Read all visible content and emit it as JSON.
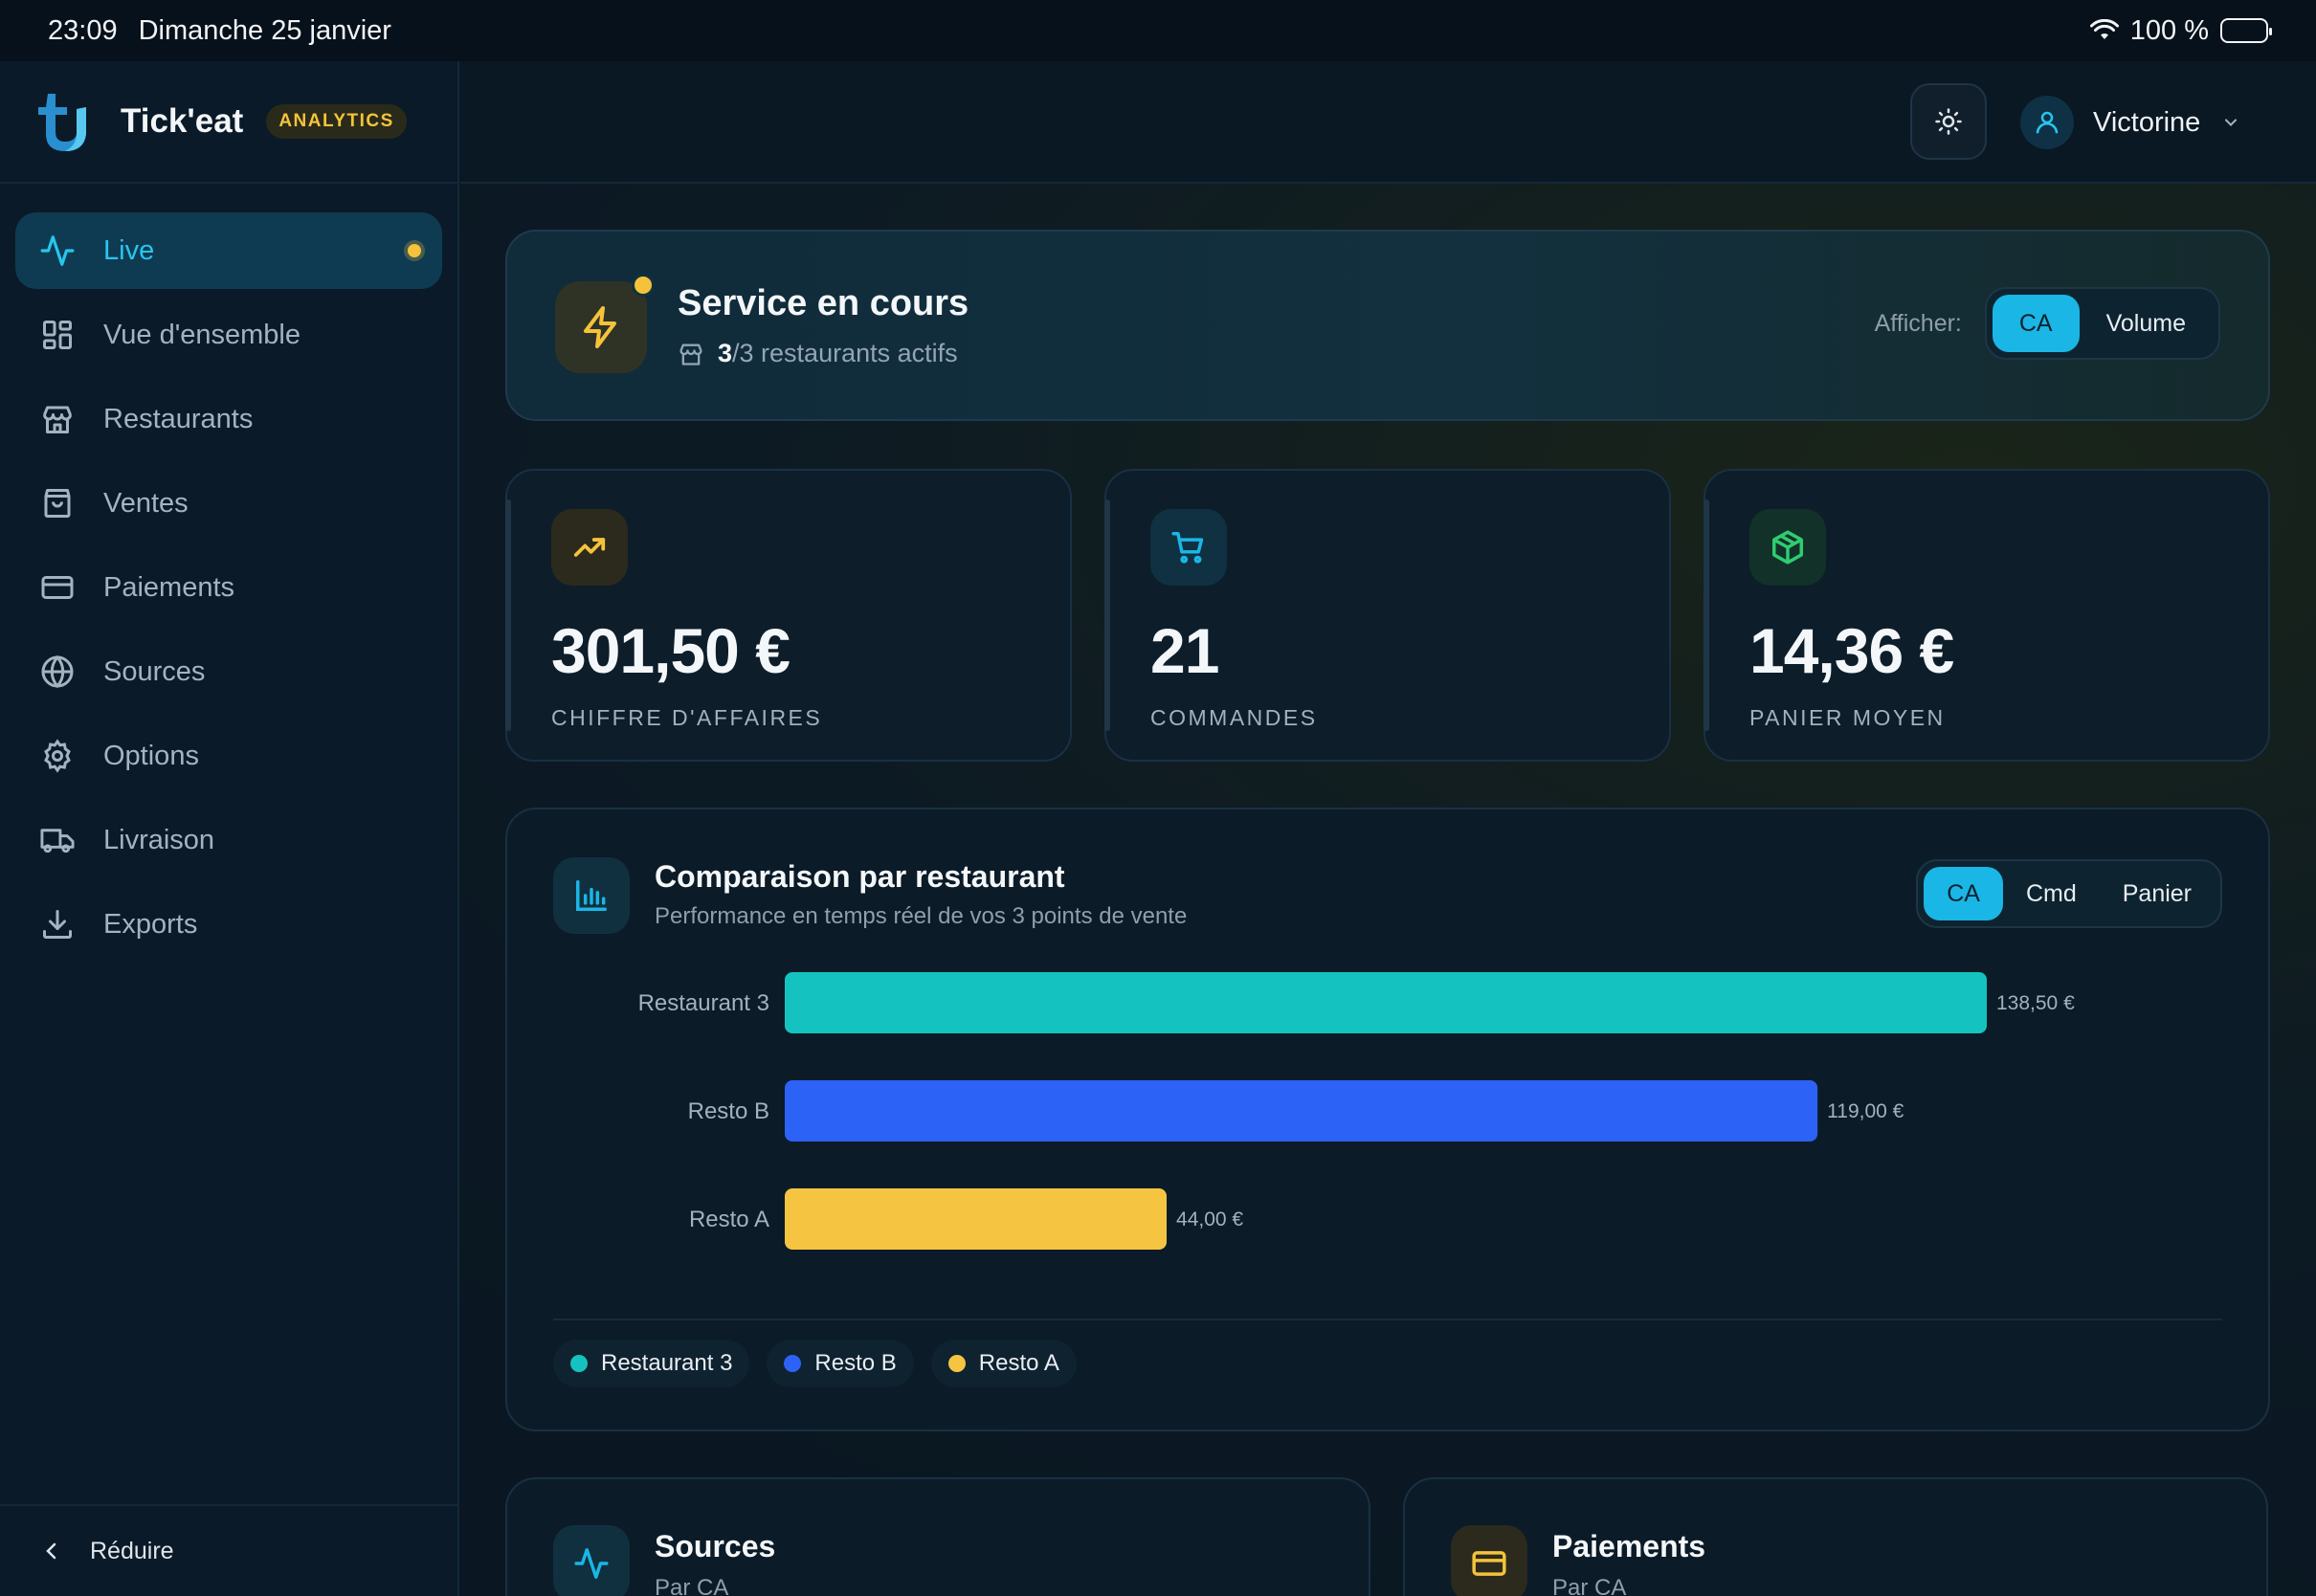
{
  "statusbar": {
    "time": "23:09",
    "date": "Dimanche 25 janvier",
    "battery": "100 %"
  },
  "brand": {
    "name": "Tick'eat",
    "badge": "ANALYTICS"
  },
  "sidebar": {
    "items": [
      {
        "label": "Live",
        "icon": "activity-icon",
        "active": true
      },
      {
        "label": "Vue d'ensemble",
        "icon": "grid-icon"
      },
      {
        "label": "Restaurants",
        "icon": "store-icon"
      },
      {
        "label": "Ventes",
        "icon": "bag-icon"
      },
      {
        "label": "Paiements",
        "icon": "credit-card-icon"
      },
      {
        "label": "Sources",
        "icon": "globe-icon"
      },
      {
        "label": "Options",
        "icon": "gear-icon"
      },
      {
        "label": "Livraison",
        "icon": "truck-icon"
      },
      {
        "label": "Exports",
        "icon": "download-icon"
      }
    ],
    "collapse_label": "Réduire"
  },
  "header": {
    "user_name": "Victorine"
  },
  "service": {
    "title": "Service en cours",
    "active_count": "3",
    "total_suffix": "/3 restaurants actifs",
    "show_label": "Afficher:",
    "options": [
      "CA",
      "Volume"
    ],
    "selected": "CA"
  },
  "kpis": [
    {
      "value": "301,50 €",
      "label": "CHIFFRE D'AFFAIRES",
      "icon": "trending-up-icon",
      "color": "#f5c33b"
    },
    {
      "value": "21",
      "label": "COMMANDES",
      "icon": "cart-icon",
      "color": "#1ab6e6"
    },
    {
      "value": "14,36 €",
      "label": "PANIER MOYEN",
      "icon": "package-icon",
      "color": "#2ecc71"
    }
  ],
  "comparison": {
    "title": "Comparaison par restaurant",
    "subtitle": "Performance en temps réel de vos 3 points de vente",
    "options": [
      "CA",
      "Cmd",
      "Panier"
    ],
    "selected": "CA"
  },
  "chart_data": {
    "type": "bar",
    "orientation": "horizontal",
    "categories": [
      "Restaurant 3",
      "Resto B",
      "Resto A"
    ],
    "values": [
      138.5,
      119.0,
      44.0
    ],
    "value_labels": [
      "138,50 €",
      "119,00 €",
      "44,00 €"
    ],
    "colors": [
      "#14c3c0",
      "#2d62f7",
      "#f5c542"
    ],
    "xlim": [
      0,
      138.5
    ],
    "grid": false,
    "legend": "bottom-left"
  },
  "cards": [
    {
      "title": "Sources",
      "subtitle": "Par CA",
      "icon": "activity-icon"
    },
    {
      "title": "Paiements",
      "subtitle": "Par CA",
      "icon": "credit-card-icon"
    }
  ]
}
